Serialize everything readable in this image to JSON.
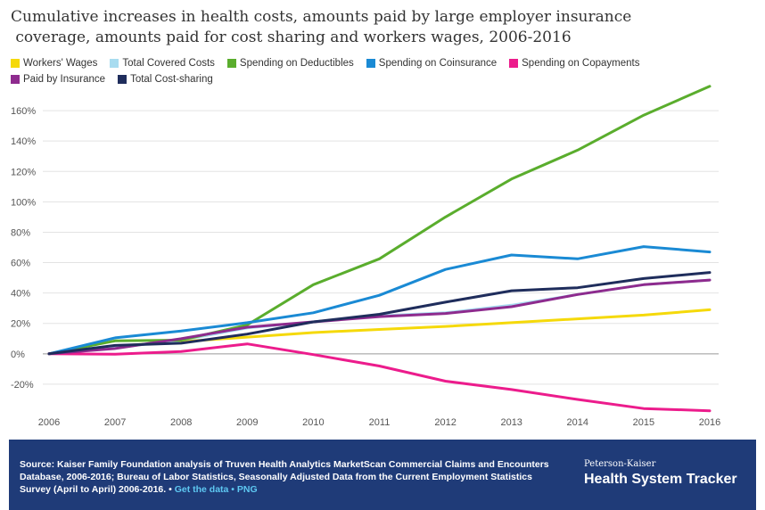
{
  "chart_data": {
    "type": "line",
    "title": "Cumulative increases in health costs, amounts paid by large employer insurance coverage, amounts paid for cost sharing and workers wages, 2006-2016",
    "title_lines": [
      "Cumulative increases in health costs, amounts paid by large employer insurance",
      " coverage, amounts paid for cost sharing and workers wages, 2006-2016"
    ],
    "x": [
      "2006",
      "2007",
      "2008",
      "2009",
      "2010",
      "2011",
      "2012",
      "2013",
      "2014",
      "2015",
      "2016"
    ],
    "ylim": [
      -40,
      180
    ],
    "yticks": [
      -20,
      0,
      20,
      40,
      60,
      80,
      100,
      120,
      140,
      160
    ],
    "ytick_labels": [
      "-20%",
      "0%",
      "20%",
      "40%",
      "60%",
      "80%",
      "100%",
      "120%",
      "140%",
      "160%"
    ],
    "grid": "horizontal",
    "legend_position": "top",
    "series": [
      {
        "name": "Workers' Wages",
        "color": "#f5d90a",
        "values": [
          0,
          5,
          8,
          11,
          14,
          16,
          18,
          20.5,
          23,
          25.5,
          29
        ]
      },
      {
        "name": "Total Covered Costs",
        "color": "#a8dcf0",
        "values": [
          0,
          4,
          9,
          17,
          21,
          25,
          27,
          32,
          39,
          45.5,
          48.5
        ]
      },
      {
        "name": "Spending on Deductibles",
        "color": "#5aad2d",
        "values": [
          0,
          8.5,
          9,
          19,
          45.5,
          62.5,
          90,
          115,
          134,
          157,
          176
        ]
      },
      {
        "name": "Spending on Coinsurance",
        "color": "#1a8ad4",
        "values": [
          0,
          10.5,
          15,
          20.5,
          27,
          38.5,
          55.5,
          65,
          62.5,
          70.5,
          67
        ]
      },
      {
        "name": "Spending on Copayments",
        "color": "#ec1c8c",
        "values": [
          0,
          -0.3,
          1.5,
          6.5,
          -0.5,
          -8,
          -18,
          -23.5,
          -30,
          -36,
          -37.5
        ]
      },
      {
        "name": "Paid by Insurance",
        "color": "#8e2b8e",
        "values": [
          0,
          3.5,
          10,
          17.5,
          21,
          24.5,
          26.5,
          31,
          39,
          45.5,
          48.5
        ]
      },
      {
        "name": "Total Cost-sharing",
        "color": "#1f2d5c",
        "values": [
          0,
          5.5,
          7,
          13,
          21,
          26,
          34,
          41.5,
          43.5,
          49.5,
          53.5
        ]
      }
    ]
  },
  "footer": {
    "source_text": "Source: Kaiser Family Foundation analysis of Truven Health Analytics MarketScan Commercial Claims and Encounters Database, 2006-2016; Bureau of Labor Statistics, Seasonally Adjusted Data from the Current Employment Statistics Survey (April to April) 2006-2016. •",
    "get_data_link": "Get the data",
    "separator": "•",
    "png_link": "PNG",
    "brand_small": "Peterson-Kaiser",
    "brand_big": "Health System Tracker",
    "background_color": "#1f3b78",
    "link_color": "#5ec8f2"
  }
}
